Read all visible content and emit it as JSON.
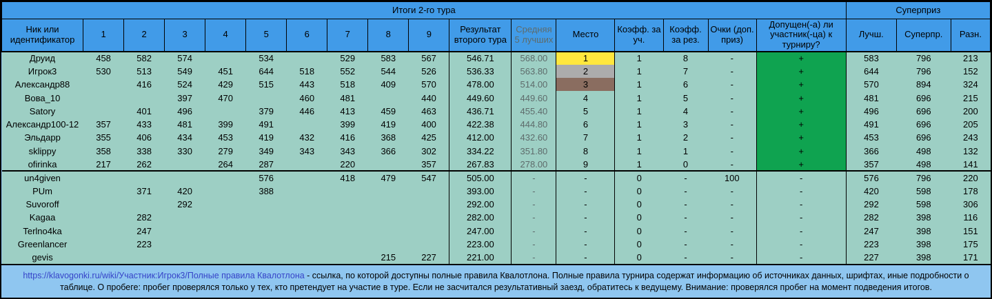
{
  "title": "Итоги 2-го тура",
  "superprize_title": "Суперприз",
  "columns": {
    "nick": "Ник или идентификатор",
    "races": [
      "1",
      "2",
      "3",
      "4",
      "5",
      "6",
      "7",
      "8",
      "9"
    ],
    "result": "Результат второго тура",
    "avg5": "Средняя 5 лучших",
    "place": "Место",
    "coef_participation": "Коэфф. за уч.",
    "coef_result": "Коэфф. за рез.",
    "bonus_points": "Очки (доп. приз)",
    "admitted": "Допущен(-а) ли участник(-ца) к турниру?",
    "best": "Лучш.",
    "superprize": "Суперпр.",
    "difference": "Разн."
  },
  "rows": [
    {
      "group": 1,
      "nick": "Друид",
      "races": [
        "458",
        "582",
        "574",
        "",
        "534",
        "",
        "529",
        "583",
        "567"
      ],
      "result": "546.71",
      "avg5": "568.00",
      "place": "1",
      "place_style": "gold",
      "coef_participation": "1",
      "coef_result": "8",
      "bonus_points": "-",
      "admitted": "+",
      "admitted_style": "green",
      "best": "583",
      "superprize": "796",
      "difference": "213"
    },
    {
      "group": 1,
      "nick": "Игрок3",
      "races": [
        "530",
        "513",
        "549",
        "451",
        "644",
        "518",
        "552",
        "544",
        "526"
      ],
      "result": "536.33",
      "avg5": "563.80",
      "place": "2",
      "place_style": "silver",
      "coef_participation": "1",
      "coef_result": "7",
      "bonus_points": "-",
      "admitted": "+",
      "admitted_style": "green",
      "best": "644",
      "superprize": "796",
      "difference": "152"
    },
    {
      "group": 1,
      "nick": "Александр88",
      "races": [
        "",
        "416",
        "524",
        "429",
        "515",
        "443",
        "518",
        "409",
        "570"
      ],
      "result": "478.00",
      "avg5": "514.00",
      "place": "3",
      "place_style": "bronze",
      "coef_participation": "1",
      "coef_result": "6",
      "bonus_points": "-",
      "admitted": "+",
      "admitted_style": "green",
      "best": "570",
      "superprize": "894",
      "difference": "324"
    },
    {
      "group": 1,
      "nick": "Вова_10",
      "races": [
        "",
        "",
        "397",
        "470",
        "",
        "460",
        "481",
        "",
        "440"
      ],
      "result": "449.60",
      "avg5": "449.60",
      "place": "4",
      "place_style": "",
      "coef_participation": "1",
      "coef_result": "5",
      "bonus_points": "-",
      "admitted": "+",
      "admitted_style": "green",
      "best": "481",
      "superprize": "696",
      "difference": "215"
    },
    {
      "group": 1,
      "nick": "Satory",
      "races": [
        "",
        "401",
        "496",
        "",
        "379",
        "446",
        "413",
        "459",
        "463"
      ],
      "result": "436.71",
      "avg5": "455.40",
      "place": "5",
      "place_style": "",
      "coef_participation": "1",
      "coef_result": "4",
      "bonus_points": "-",
      "admitted": "+",
      "admitted_style": "green",
      "best": "496",
      "superprize": "696",
      "difference": "200"
    },
    {
      "group": 1,
      "nick": "Александр100-12",
      "races": [
        "357",
        "433",
        "481",
        "399",
        "491",
        "",
        "399",
        "419",
        "400"
      ],
      "result": "422.38",
      "avg5": "444.80",
      "place": "6",
      "place_style": "",
      "coef_participation": "1",
      "coef_result": "3",
      "bonus_points": "-",
      "admitted": "+",
      "admitted_style": "green",
      "best": "491",
      "superprize": "696",
      "difference": "205"
    },
    {
      "group": 1,
      "nick": "Эльдарр",
      "races": [
        "355",
        "406",
        "434",
        "453",
        "419",
        "432",
        "416",
        "368",
        "425"
      ],
      "result": "412.00",
      "avg5": "432.60",
      "place": "7",
      "place_style": "",
      "coef_participation": "1",
      "coef_result": "2",
      "bonus_points": "-",
      "admitted": "+",
      "admitted_style": "green",
      "best": "453",
      "superprize": "696",
      "difference": "243"
    },
    {
      "group": 1,
      "nick": "sklippy",
      "races": [
        "358",
        "338",
        "330",
        "279",
        "349",
        "343",
        "343",
        "366",
        "302"
      ],
      "result": "334.22",
      "avg5": "351.80",
      "place": "8",
      "place_style": "",
      "coef_participation": "1",
      "coef_result": "1",
      "bonus_points": "-",
      "admitted": "+",
      "admitted_style": "green",
      "best": "366",
      "superprize": "498",
      "difference": "132"
    },
    {
      "group": 1,
      "nick": "ofirinka",
      "races": [
        "217",
        "262",
        "",
        "264",
        "287",
        "",
        "220",
        "",
        "357"
      ],
      "result": "267.83",
      "avg5": "278.00",
      "place": "9",
      "place_style": "",
      "coef_participation": "1",
      "coef_result": "0",
      "bonus_points": "-",
      "admitted": "+",
      "admitted_style": "green",
      "best": "357",
      "superprize": "498",
      "difference": "141"
    },
    {
      "group": 2,
      "nick": "un4given",
      "races": [
        "",
        "",
        "",
        "",
        "576",
        "",
        "418",
        "479",
        "547"
      ],
      "result": "505.00",
      "avg5": "-",
      "place": "-",
      "place_style": "",
      "coef_participation": "0",
      "coef_result": "-",
      "bonus_points": "100",
      "admitted": "-",
      "admitted_style": "",
      "best": "576",
      "superprize": "796",
      "difference": "220"
    },
    {
      "group": 2,
      "nick": "PUm",
      "races": [
        "",
        "371",
        "420",
        "",
        "388",
        "",
        "",
        "",
        ""
      ],
      "result": "393.00",
      "avg5": "-",
      "place": "-",
      "place_style": "",
      "coef_participation": "0",
      "coef_result": "-",
      "bonus_points": "-",
      "admitted": "-",
      "admitted_style": "",
      "best": "420",
      "superprize": "598",
      "difference": "178"
    },
    {
      "group": 2,
      "nick": "Suvoroff",
      "races": [
        "",
        "",
        "292",
        "",
        "",
        "",
        "",
        "",
        ""
      ],
      "result": "292.00",
      "avg5": "-",
      "place": "-",
      "place_style": "",
      "coef_participation": "0",
      "coef_result": "-",
      "bonus_points": "-",
      "admitted": "-",
      "admitted_style": "",
      "best": "292",
      "superprize": "598",
      "difference": "306"
    },
    {
      "group": 2,
      "nick": "Kagaa",
      "races": [
        "",
        "282",
        "",
        "",
        "",
        "",
        "",
        "",
        ""
      ],
      "result": "282.00",
      "avg5": "-",
      "place": "-",
      "place_style": "",
      "coef_participation": "0",
      "coef_result": "-",
      "bonus_points": "-",
      "admitted": "-",
      "admitted_style": "",
      "best": "282",
      "superprize": "398",
      "difference": "116"
    },
    {
      "group": 2,
      "nick": "Terlno4ka",
      "races": [
        "",
        "247",
        "",
        "",
        "",
        "",
        "",
        "",
        ""
      ],
      "result": "247.00",
      "avg5": "-",
      "place": "-",
      "place_style": "",
      "coef_participation": "0",
      "coef_result": "-",
      "bonus_points": "-",
      "admitted": "-",
      "admitted_style": "",
      "best": "247",
      "superprize": "398",
      "difference": "151"
    },
    {
      "group": 2,
      "nick": "Greenlancer",
      "races": [
        "",
        "223",
        "",
        "",
        "",
        "",
        "",
        "",
        ""
      ],
      "result": "223.00",
      "avg5": "-",
      "place": "-",
      "place_style": "",
      "coef_participation": "0",
      "coef_result": "-",
      "bonus_points": "-",
      "admitted": "-",
      "admitted_style": "",
      "best": "223",
      "superprize": "398",
      "difference": "175"
    },
    {
      "group": 2,
      "nick": "gevis",
      "races": [
        "",
        "",
        "",
        "",
        "",
        "",
        "",
        "215",
        "227"
      ],
      "result": "221.00",
      "avg5": "-",
      "place": "-",
      "place_style": "",
      "coef_participation": "0",
      "coef_result": "-",
      "bonus_points": "-",
      "admitted": "-",
      "admitted_style": "",
      "best": "227",
      "superprize": "398",
      "difference": "171"
    }
  ],
  "footer": {
    "link_text": "https://klavogonki.ru/wiki/Участник:Игрок3/Полные правила Квалотлона",
    "text_after_link": " - ссылка, по которой доступны полные правила Квалотлона. Полные правила турнира содержат информацию об источниках данных, шрифтах, иные подробности о таблице. О пробеге: пробег проверялся только у тех, кто претендует на участие в туре. Если не засчитался результативный заезд, обратитесь к ведущему. Внимание: проверялся пробег на момент подведения итогов."
  },
  "colors": {
    "header_blue": "#419BE8",
    "body_teal": "#9DCFC4",
    "admitted_green": "#0FA350",
    "place_gold": "#FFE73E",
    "place_silver": "#ACACAC",
    "place_bronze": "#8A6D60",
    "footer_blue": "#8FC6F0",
    "muted_text": "#5E6B6B",
    "link_blue": "#3643C8"
  }
}
